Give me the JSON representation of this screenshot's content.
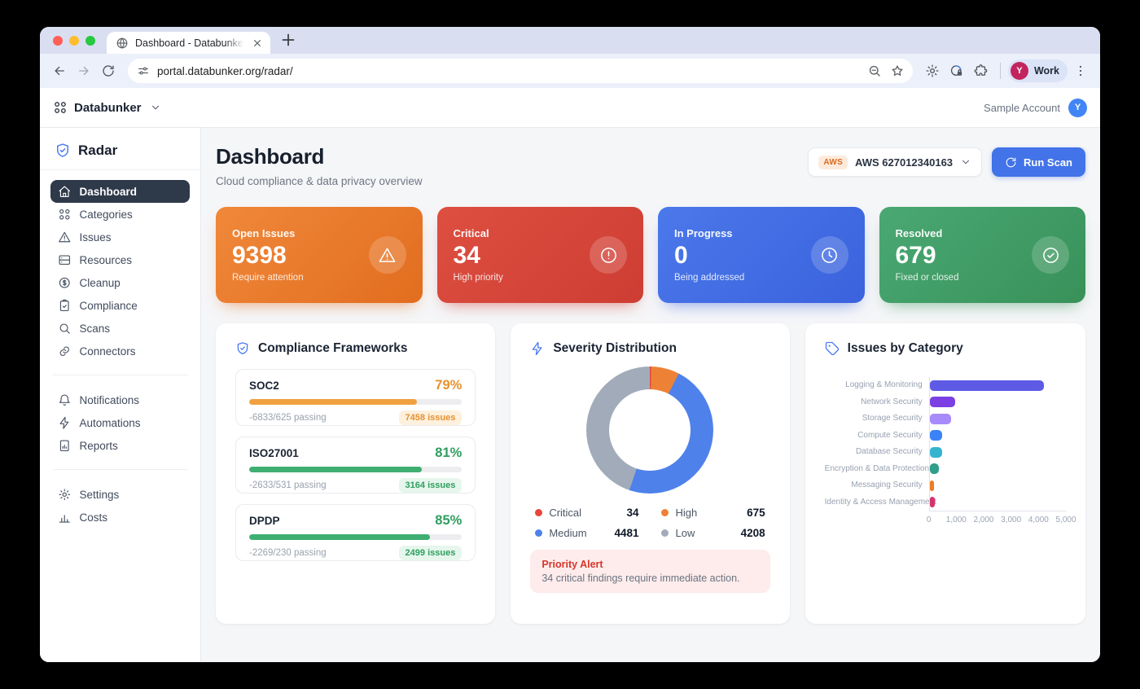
{
  "browser": {
    "tab": {
      "title": "Dashboard - Databunker Radar"
    },
    "url": "portal.databunker.org/radar/",
    "profile": {
      "label": "Work",
      "avatar_letter": "Y",
      "avatar_color": "#c2255c"
    },
    "traffic_lights": {
      "close": "#ff5f57",
      "minimize": "#febc2e",
      "zoom": "#28c840"
    }
  },
  "app_header": {
    "brand": "Databunker",
    "account_label": "Sample Account",
    "avatar_letter": "Y",
    "avatar_color": "#4285f4"
  },
  "sidebar": {
    "product": "Radar",
    "groups": [
      {
        "items": [
          {
            "label": "Dashboard",
            "icon": "home",
            "active": true
          },
          {
            "label": "Categories",
            "icon": "grid-circles",
            "active": false
          },
          {
            "label": "Issues",
            "icon": "triangle-alert",
            "active": false
          },
          {
            "label": "Resources",
            "icon": "server",
            "active": false
          },
          {
            "label": "Cleanup",
            "icon": "dollar-circle",
            "active": false
          },
          {
            "label": "Compliance",
            "icon": "clipboard-check",
            "active": false
          },
          {
            "label": "Scans",
            "icon": "search",
            "active": false
          },
          {
            "label": "Connectors",
            "icon": "link",
            "active": false
          }
        ]
      },
      {
        "items": [
          {
            "label": "Notifications",
            "icon": "bell",
            "active": false
          },
          {
            "label": "Automations",
            "icon": "zap",
            "active": false
          },
          {
            "label": "Reports",
            "icon": "file-chart",
            "active": false
          }
        ]
      },
      {
        "items": [
          {
            "label": "Settings",
            "icon": "gear",
            "active": false
          },
          {
            "label": "Costs",
            "icon": "bar-chart",
            "active": false
          }
        ]
      }
    ]
  },
  "page": {
    "title": "Dashboard",
    "subtitle": "Cloud compliance & data privacy overview",
    "account_selector": {
      "badge": "AWS",
      "label": "AWS 627012340163"
    },
    "run_scan_label": "Run Scan"
  },
  "stats": [
    {
      "label": "Open Issues",
      "value": "9398",
      "sublabel": "Require attention",
      "icon": "triangle-alert",
      "from": "#f0883a",
      "to": "#e26d1f"
    },
    {
      "label": "Critical",
      "value": "34",
      "sublabel": "High priority",
      "icon": "alert-circle",
      "from": "#dd4f41",
      "to": "#ce3d33"
    },
    {
      "label": "In Progress",
      "value": "0",
      "sublabel": "Being addressed",
      "icon": "clock",
      "from": "#4b78ea",
      "to": "#3a62dd"
    },
    {
      "label": "Resolved",
      "value": "679",
      "sublabel": "Fixed or closed",
      "icon": "check-circle",
      "from": "#4aa873",
      "to": "#389159"
    }
  ],
  "compliance": {
    "title": "Compliance Frameworks",
    "frameworks": [
      {
        "name": "SOC2",
        "percent": "79%",
        "bar_pct": 79,
        "detail": "-6833/625 passing",
        "issues": "7458 issues",
        "color": "#f0a13f",
        "pct_color": "#e8912f",
        "badge_bg": "#fdf0dd",
        "badge_text": "#e8912f"
      },
      {
        "name": "ISO27001",
        "percent": "81%",
        "bar_pct": 81,
        "detail": "-2633/531 passing",
        "issues": "3164 issues",
        "color": "#3fae72",
        "pct_color": "#2f9e5f",
        "badge_bg": "#e6f6ec",
        "badge_text": "#2f9e5f"
      },
      {
        "name": "DPDP",
        "percent": "85%",
        "bar_pct": 85,
        "detail": "-2269/230 passing",
        "issues": "2499 issues",
        "color": "#3fae72",
        "pct_color": "#2f9e5f",
        "badge_bg": "#e6f6ec",
        "badge_text": "#2f9e5f"
      }
    ]
  },
  "severity": {
    "title": "Severity Distribution",
    "alert": {
      "title": "Priority Alert",
      "text": "34 critical findings require immediate action."
    }
  },
  "categories": {
    "title": "Issues by Category"
  },
  "chart_data": [
    {
      "id": "severity_donut",
      "type": "pie",
      "donut": true,
      "title": "Severity Distribution",
      "labels": [
        "Critical",
        "High",
        "Medium",
        "Low"
      ],
      "values": [
        34,
        675,
        4481,
        4208
      ],
      "colors": [
        "#e8463c",
        "#ed8136",
        "#4f81ea",
        "#a2abba"
      ],
      "legend_position": "bottom"
    },
    {
      "id": "issues_by_category",
      "type": "bar",
      "orientation": "horizontal",
      "title": "Issues by Category",
      "categories": [
        "Logging & Monitoring",
        "Network Security",
        "Storage Security",
        "Compute Security",
        "Database Security",
        "Encryption & Data Protection",
        "Messaging Security",
        "Identity & Access Management"
      ],
      "values": [
        4200,
        950,
        800,
        450,
        460,
        330,
        165,
        180
      ],
      "colors": [
        "#5d5be6",
        "#7b3fe4",
        "#a78bfa",
        "#3b82f6",
        "#35b4cf",
        "#2f9e8a",
        "#ee7d23",
        "#d6336c"
      ],
      "xlim": [
        0,
        5000
      ],
      "xticks": [
        "0",
        "1,000",
        "2,000",
        "3,000",
        "4,000",
        "5,000"
      ],
      "grid": false
    }
  ]
}
